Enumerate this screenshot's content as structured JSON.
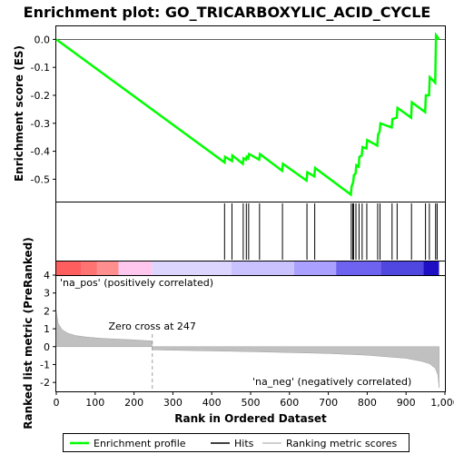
{
  "chart_data": [
    {
      "type": "line",
      "title": "Enrichment plot: GO_TRICARBOXYLIC_ACID_CYCLE",
      "ylabel": "Enrichment score (ES)",
      "ylim": [
        -0.58,
        0.05
      ],
      "yticks": [
        0.0,
        -0.1,
        -0.2,
        -0.3,
        -0.4,
        -0.5
      ],
      "ytick_labels": [
        "0.0",
        "-0.1",
        "-0.2",
        "-0.3",
        "-0.4",
        "-0.5"
      ],
      "xlim": [
        0,
        1000
      ],
      "series": [
        {
          "name": "Enrichment profile",
          "color": "#00ff00",
          "x": [
            0,
            433,
            434,
            452,
            453,
            480,
            482,
            488,
            490,
            494,
            496,
            522,
            524,
            581,
            583,
            644,
            646,
            664,
            666,
            758,
            760,
            764,
            766,
            770,
            772,
            778,
            780,
            786,
            788,
            798,
            800,
            826,
            828,
            832,
            834,
            863,
            865,
            876,
            878,
            913,
            915,
            949,
            951,
            959,
            961,
            975,
            977,
            985
          ],
          "y": [
            0.0,
            -0.44,
            -0.42,
            -0.435,
            -0.415,
            -0.445,
            -0.425,
            -0.43,
            -0.42,
            -0.425,
            -0.41,
            -0.43,
            -0.41,
            -0.47,
            -0.445,
            -0.505,
            -0.475,
            -0.49,
            -0.46,
            -0.555,
            -0.525,
            -0.51,
            -0.485,
            -0.48,
            -0.45,
            -0.455,
            -0.42,
            -0.415,
            -0.385,
            -0.39,
            -0.36,
            -0.38,
            -0.34,
            -0.33,
            -0.3,
            -0.315,
            -0.285,
            -0.28,
            -0.245,
            -0.28,
            -0.225,
            -0.26,
            -0.2,
            -0.2,
            -0.135,
            -0.155,
            0.015,
            0.0
          ]
        }
      ]
    },
    {
      "type": "hits",
      "xlim": [
        0,
        1000
      ],
      "series": [
        {
          "name": "Hits",
          "color": "#000000",
          "x": [
            433,
            452,
            481,
            489,
            495,
            523,
            582,
            645,
            665,
            759,
            763,
            765,
            771,
            779,
            787,
            799,
            827,
            833,
            864,
            877,
            914,
            950,
            960,
            976,
            980
          ]
        }
      ]
    },
    {
      "type": "heatmap",
      "xlim": [
        0,
        1000
      ],
      "bands": [
        {
          "from": 0,
          "to": 65,
          "color": "#ff5e5e"
        },
        {
          "from": 65,
          "to": 105,
          "color": "#ff7373"
        },
        {
          "from": 105,
          "to": 160,
          "color": "#ff8f8f"
        },
        {
          "from": 160,
          "to": 247,
          "color": "#ffc6ee"
        },
        {
          "from": 247,
          "to": 450,
          "color": "#dcd6ff"
        },
        {
          "from": 450,
          "to": 612,
          "color": "#c9c2ff"
        },
        {
          "from": 612,
          "to": 720,
          "color": "#a9a0ff"
        },
        {
          "from": 720,
          "to": 835,
          "color": "#6e62f0"
        },
        {
          "from": 835,
          "to": 945,
          "color": "#5046e0"
        },
        {
          "from": 945,
          "to": 985,
          "color": "#1f0fc4"
        },
        {
          "from": 985,
          "to": 1000,
          "color": "#ffffff"
        }
      ]
    },
    {
      "type": "area",
      "ylabel": "Ranked list metric (PreRanked)",
      "xlabel": "Rank in Ordered Dataset",
      "ylim": [
        -2.5,
        4
      ],
      "yticks": [
        4,
        3,
        2,
        1,
        0,
        -1,
        -2
      ],
      "ytick_labels": [
        "4",
        "3",
        "2",
        "1",
        "0",
        "-1",
        "-2"
      ],
      "xlim": [
        0,
        1000
      ],
      "xticks": [
        0,
        100,
        200,
        300,
        400,
        500,
        600,
        700,
        800,
        900,
        1000
      ],
      "xtick_labels": [
        "0",
        "100",
        "200",
        "300",
        "400",
        "500",
        "600",
        "700",
        "800",
        "900",
        "1,000"
      ],
      "series": [
        {
          "name": "Ranking metric scores",
          "color": "#c0c0c0",
          "x": [
            0,
            5,
            15,
            30,
            50,
            80,
            120,
            160,
            200,
            246,
            247,
            300,
            400,
            500,
            600,
            700,
            800,
            900,
            940,
            960,
            975,
            982,
            985
          ],
          "y": [
            2.0,
            1.3,
            0.95,
            0.75,
            0.62,
            0.53,
            0.46,
            0.42,
            0.38,
            0.32,
            -0.18,
            -0.2,
            -0.24,
            -0.28,
            -0.33,
            -0.38,
            -0.48,
            -0.65,
            -0.82,
            -0.95,
            -1.2,
            -1.6,
            -2.3
          ]
        }
      ],
      "zero_cross": {
        "x": 247,
        "label": "Zero cross at 247"
      },
      "annotations": [
        {
          "text": "'na_pos' (positively correlated)",
          "color": "#ff0000"
        },
        {
          "text": "'na_neg' (negatively correlated)",
          "color": "#0000ff"
        }
      ]
    }
  ],
  "legend": {
    "items": [
      {
        "label": "Enrichment profile",
        "color": "#00ff00"
      },
      {
        "label": "Hits",
        "color": "#000000"
      },
      {
        "label": "Ranking metric scores",
        "color": "#c0c0c0"
      }
    ]
  }
}
